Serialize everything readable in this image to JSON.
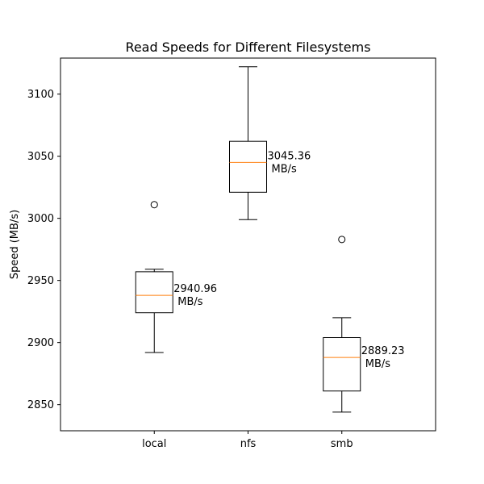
{
  "chart_data": {
    "type": "boxplot",
    "title": "Read Speeds for Different Filesystems",
    "xlabel": "",
    "ylabel": "Speed (MB/s)",
    "ylim": [
      2829,
      3129
    ],
    "yticks": [
      2850,
      2900,
      2950,
      3000,
      3050,
      3100
    ],
    "categories": [
      "local",
      "nfs",
      "smb"
    ],
    "boxes": [
      {
        "category": "local",
        "whisker_low": 2892,
        "q1": 2924,
        "median": 2938,
        "q3": 2957,
        "whisker_high": 2959,
        "outliers": [
          3011
        ],
        "annotation_value": "2940.96",
        "annotation_unit": "MB/s"
      },
      {
        "category": "nfs",
        "whisker_low": 2999,
        "q1": 3021,
        "median": 3045,
        "q3": 3062,
        "whisker_high": 3122,
        "outliers": [],
        "annotation_value": "3045.36",
        "annotation_unit": "MB/s"
      },
      {
        "category": "smb",
        "whisker_low": 2844,
        "q1": 2861,
        "median": 2888,
        "q3": 2904,
        "whisker_high": 2920,
        "outliers": [
          2983
        ],
        "annotation_value": "2889.23",
        "annotation_unit": "MB/s"
      }
    ],
    "colors": {
      "box": "#000000",
      "median": "#ff7f0e"
    },
    "grid": false,
    "legend": "none"
  }
}
